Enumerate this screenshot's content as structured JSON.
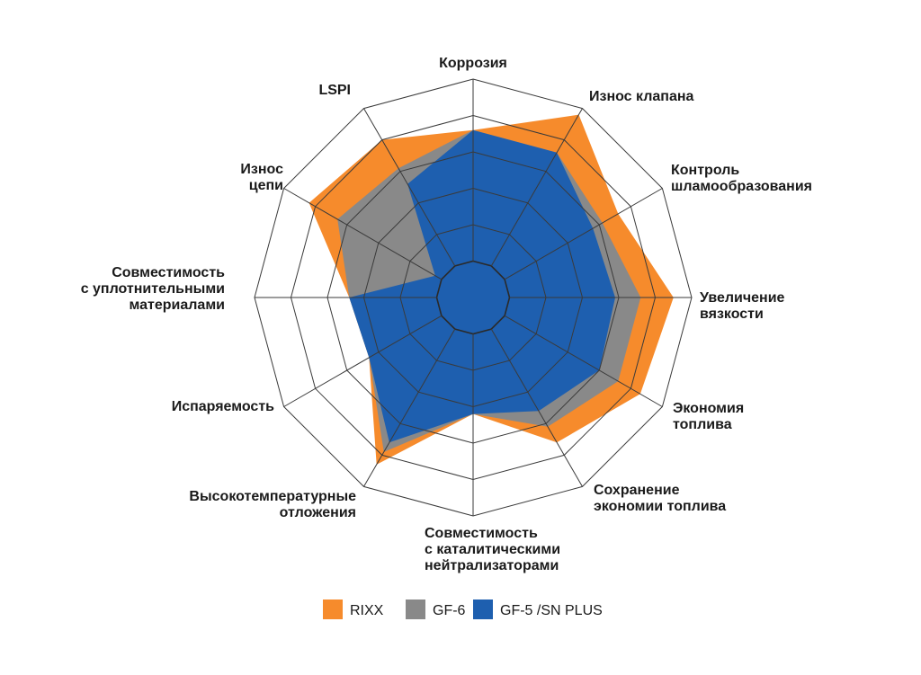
{
  "chart_data": {
    "type": "radar",
    "title": "",
    "axes": [
      {
        "lines": [
          "Коррозия"
        ]
      },
      {
        "lines": [
          "Износ клапана"
        ]
      },
      {
        "lines": [
          "Контроль",
          "шламообразования"
        ]
      },
      {
        "lines": [
          "Увеличение",
          "вязкости"
        ]
      },
      {
        "lines": [
          "Экономия",
          "топлива"
        ]
      },
      {
        "lines": [
          "Сохранение",
          "экономии топлива"
        ]
      },
      {
        "lines": [
          "Совместимость",
          "с каталитическими",
          "нейтрализаторами"
        ]
      },
      {
        "lines": [
          "Высокотемпературные",
          "отложения"
        ]
      },
      {
        "lines": [
          "Испаряемость"
        ]
      },
      {
        "lines": [
          "Совместимость",
          "с уплотнительными",
          "материалами"
        ]
      },
      {
        "lines": [
          "Износ",
          "цепи"
        ]
      },
      {
        "lines": [
          "LSPI"
        ]
      }
    ],
    "rmax": 6,
    "ring_count": 6,
    "grid": true,
    "legend_position": "bottom",
    "series": [
      {
        "name": "RIXX",
        "color": "#f68b2c",
        "values": [
          4.6,
          5.8,
          4.6,
          5.5,
          5.3,
          4.6,
          3.2,
          5.3,
          3.3,
          3.4,
          5.2,
          5.0
        ]
      },
      {
        "name": "GF-6",
        "color": "#898989",
        "values": [
          4.6,
          4.6,
          4.1,
          4.6,
          4.6,
          4.1,
          3.2,
          4.9,
          3.3,
          3.4,
          4.3,
          4.1
        ]
      },
      {
        "name": "GF-5 /SN PLUS",
        "color": "#1e5faf",
        "values": [
          4.6,
          4.6,
          3.8,
          3.9,
          4.0,
          3.6,
          3.2,
          4.6,
          3.3,
          3.4,
          1.2,
          3.6
        ]
      }
    ]
  },
  "legend": {
    "items": [
      {
        "label": "RIXX",
        "color": "#f68b2c"
      },
      {
        "label": "GF-6",
        "color": "#898989"
      },
      {
        "label": "GF-5 /SN PLUS",
        "color": "#1e5faf"
      }
    ]
  }
}
